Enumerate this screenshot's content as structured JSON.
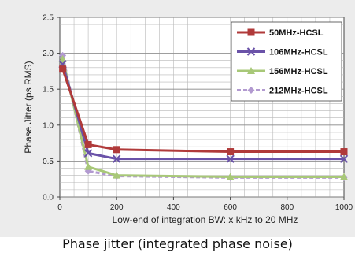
{
  "caption": "Phase jitter (integrated phase noise)",
  "chart_data": {
    "type": "line",
    "title": "",
    "xlabel": "Low-end of integration BW: x kHz to 20 MHz",
    "ylabel": "Phase Jitter (ps RMS)",
    "xlim": [
      0,
      1000
    ],
    "ylim": [
      0,
      2.5
    ],
    "xticks": [
      "0",
      "200",
      "400",
      "600",
      "800",
      "1000"
    ],
    "yticks": [
      "0.0",
      "0.5",
      "1.0",
      "1.5",
      "2.0",
      "2.5"
    ],
    "grid": true,
    "legend_position": "top-right",
    "x": [
      10,
      100,
      200,
      600,
      1000
    ],
    "series": [
      {
        "name": "50MHz-HCSL",
        "color": "#b03a3a",
        "marker": "square",
        "dash": "",
        "values": [
          1.78,
          0.73,
          0.66,
          0.63,
          0.63
        ]
      },
      {
        "name": "106MHz-HCSL",
        "color": "#6a52a8",
        "marker": "x",
        "dash": "",
        "values": [
          1.85,
          0.61,
          0.53,
          0.53,
          0.53
        ]
      },
      {
        "name": "156MHz-HCSL",
        "color": "#a8c878",
        "marker": "triangle",
        "dash": "",
        "values": [
          1.92,
          0.42,
          0.3,
          0.28,
          0.28
        ]
      },
      {
        "name": "212MHz-HCSL",
        "color": "#b29ad0",
        "marker": "diamond",
        "dash": "5,3",
        "values": [
          1.97,
          0.36,
          0.29,
          0.27,
          0.27
        ]
      }
    ]
  }
}
